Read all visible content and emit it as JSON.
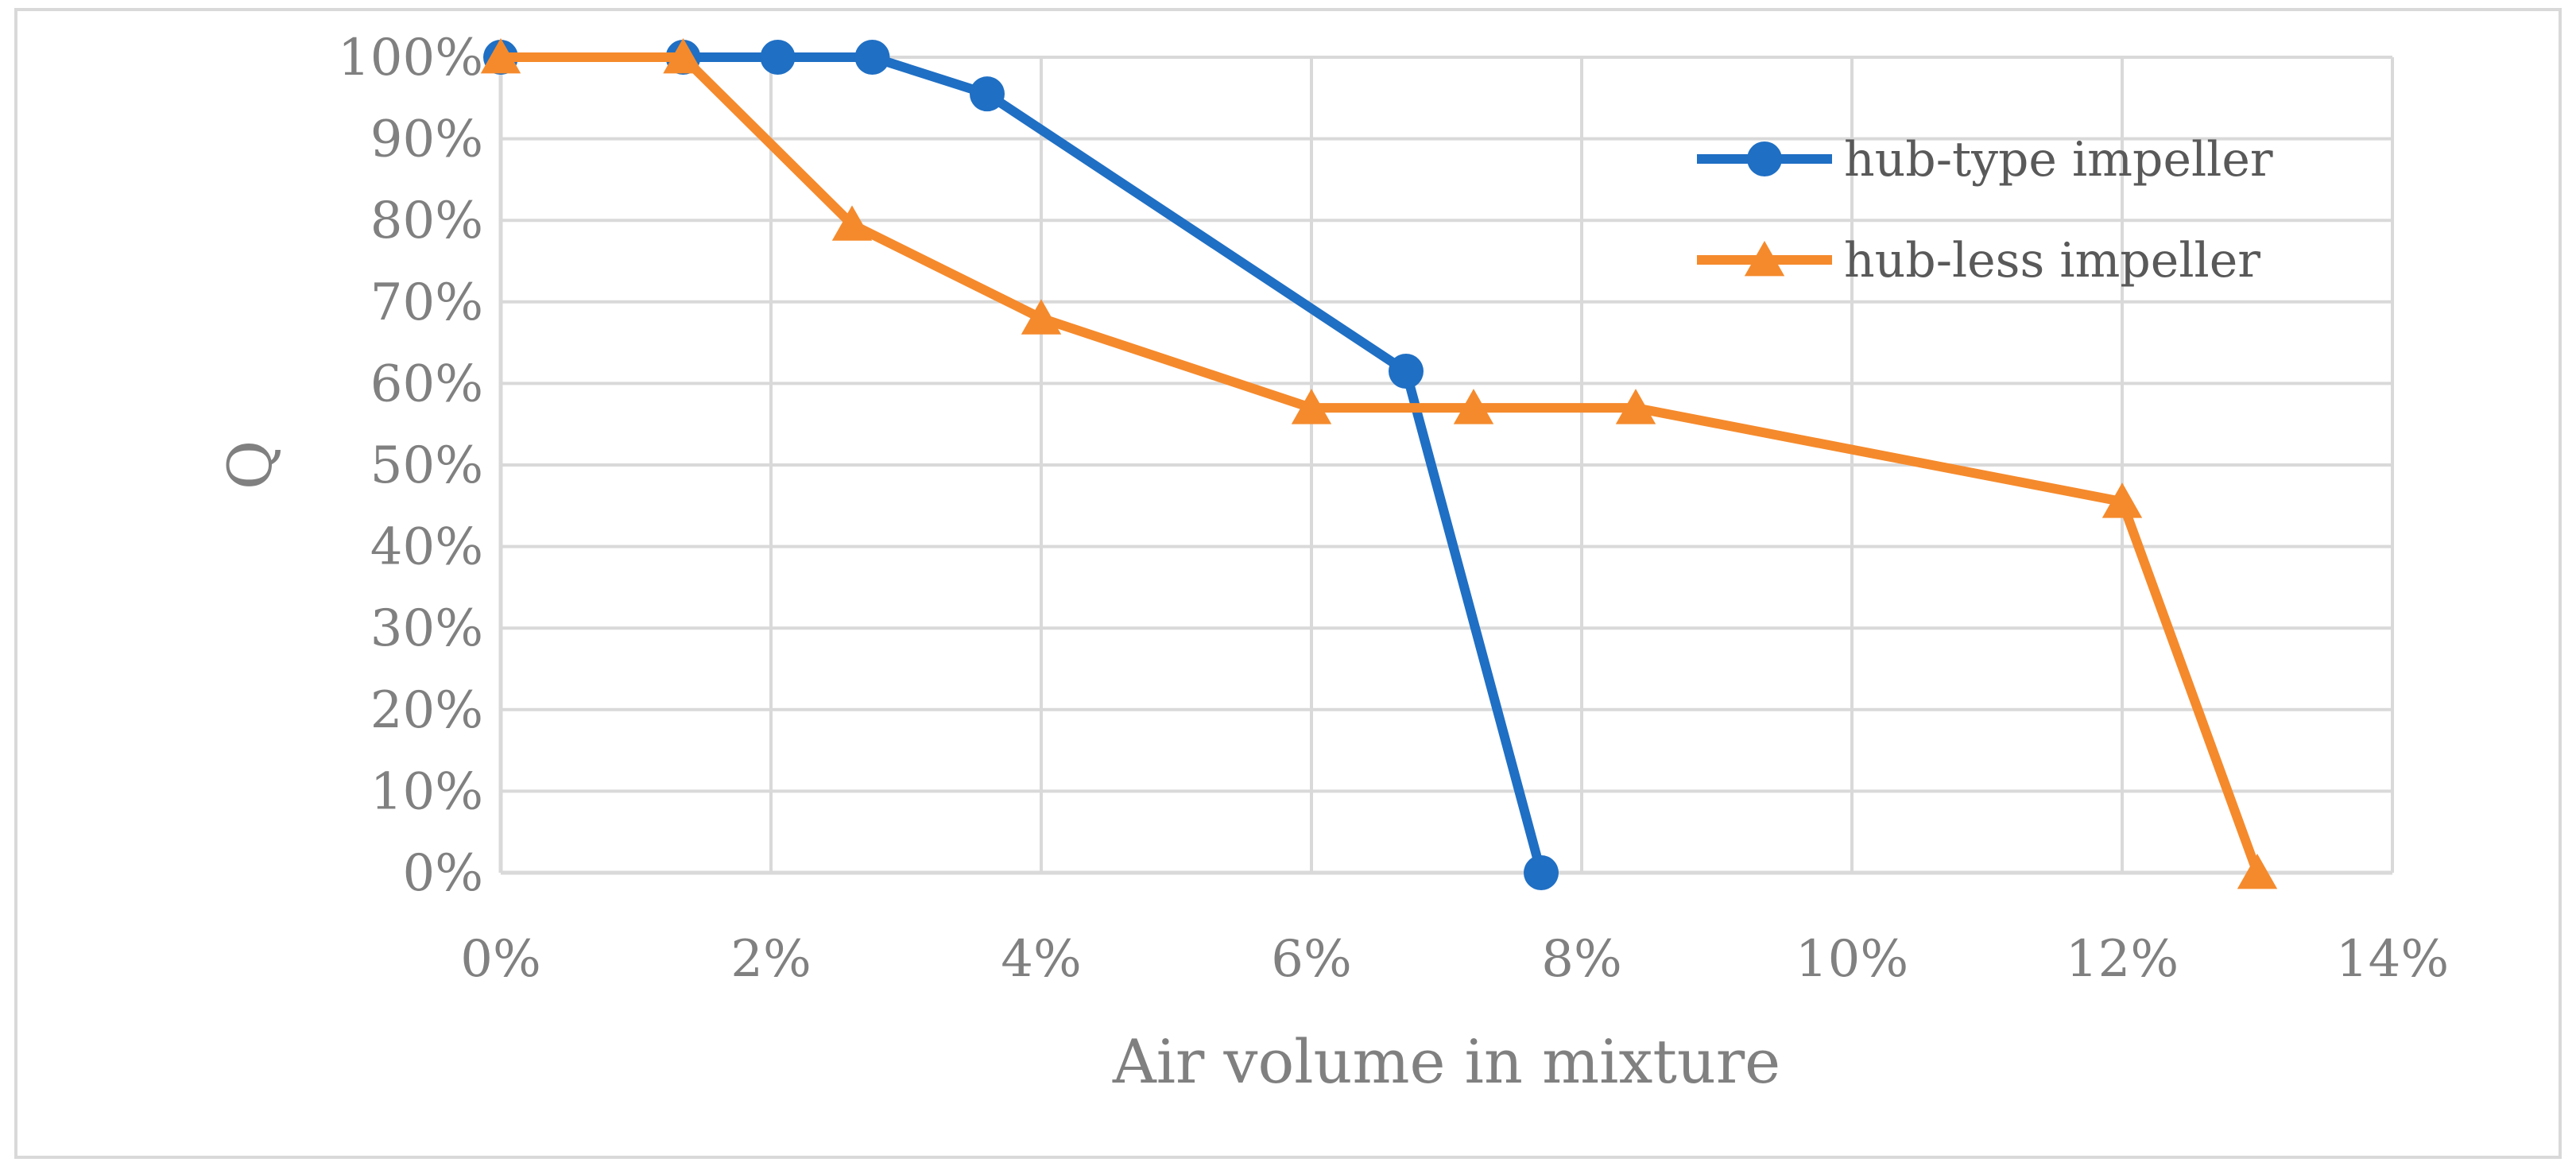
{
  "chart_data": {
    "type": "line",
    "title": "",
    "xlabel": "Air volume in mixture",
    "ylabel": "Q",
    "xlim": [
      0,
      14
    ],
    "ylim": [
      0,
      100
    ],
    "grid": true,
    "legend_position": "top-right",
    "x_ticks": [
      0,
      2,
      4,
      6,
      8,
      10,
      12,
      14
    ],
    "x_tick_labels": [
      "0%",
      "2%",
      "4%",
      "6%",
      "8%",
      "10%",
      "12%",
      "14%"
    ],
    "y_ticks": [
      0,
      10,
      20,
      30,
      40,
      50,
      60,
      70,
      80,
      90,
      100
    ],
    "y_tick_labels": [
      "0%",
      "10%",
      "20%",
      "30%",
      "40%",
      "50%",
      "60%",
      "70%",
      "80%",
      "90%",
      "100%"
    ],
    "series": [
      {
        "name": "hub-type impeller",
        "color": "#1f6fc4",
        "marker": "circle",
        "x": [
          0,
          1.35,
          2.05,
          2.75,
          3.6,
          6.7,
          7.7
        ],
        "y": [
          100,
          100,
          100,
          100,
          95.5,
          61.5,
          0
        ]
      },
      {
        "name": "hub-less impeller",
        "color": "#f58a2c",
        "marker": "triangle",
        "x": [
          0,
          1.35,
          2.6,
          4.0,
          6.0,
          7.2,
          8.4,
          12.0,
          13.0
        ],
        "y": [
          100,
          100,
          79.5,
          68,
          57,
          57,
          57,
          45.5,
          0
        ]
      }
    ]
  }
}
